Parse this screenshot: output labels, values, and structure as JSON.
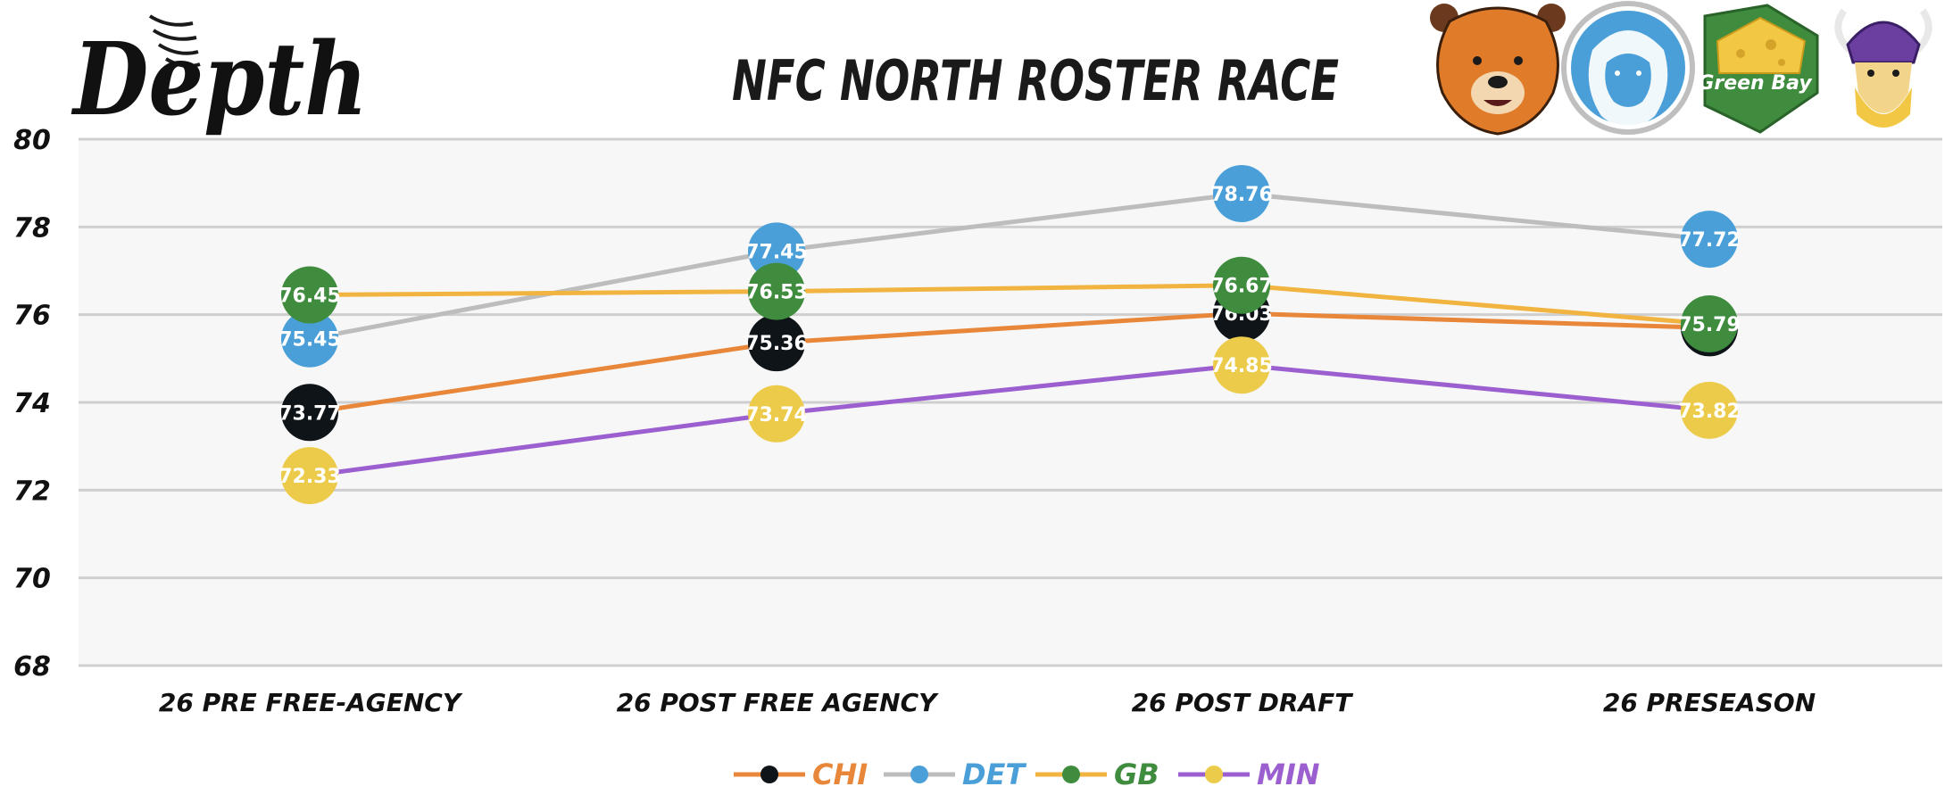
{
  "brand": {
    "logo_text": "Depth"
  },
  "team_logos": [
    {
      "icon": "bear-head-icon",
      "color": "#E07B2A"
    },
    {
      "icon": "lion-head-icon",
      "color": "#4A9FD8"
    },
    {
      "icon": "cheese-badge-icon",
      "text": "Green Bay",
      "color": "#3F8C3F"
    },
    {
      "icon": "viking-head-icon",
      "color": "#6B3FA0"
    }
  ],
  "chart_data": {
    "type": "line",
    "title": "NFC NORTH ROSTER RACE",
    "categories": [
      "26 PRE FREE-AGENCY",
      "26 POST FREE AGENCY",
      "26 POST DRAFT",
      "26 PRESEASON"
    ],
    "ylim": [
      68,
      80
    ],
    "yticks": [
      80,
      78,
      76,
      74,
      72,
      70,
      68
    ],
    "grid": true,
    "legend_position": "bottom",
    "series": [
      {
        "name": "CHI",
        "values": [
          73.77,
          75.36,
          76.03,
          75.7
        ],
        "line_color": "#E8873A",
        "marker_color": "#0F1419",
        "label_color": "#E8873A"
      },
      {
        "name": "DET",
        "values": [
          75.45,
          77.45,
          78.76,
          77.72
        ],
        "line_color": "#BDBDBD",
        "marker_color": "#4A9FD8",
        "label_color": "#4A9FD8"
      },
      {
        "name": "GB",
        "values": [
          76.45,
          76.53,
          76.67,
          75.79
        ],
        "line_color": "#F2B440",
        "marker_color": "#3F8C3F",
        "label_color": "#3F8C3F"
      },
      {
        "name": "MIN",
        "values": [
          72.33,
          73.74,
          74.85,
          73.82
        ],
        "line_color": "#9B5FCF",
        "marker_color": "#EDCB4A",
        "label_color": "#9B5FCF"
      }
    ]
  }
}
